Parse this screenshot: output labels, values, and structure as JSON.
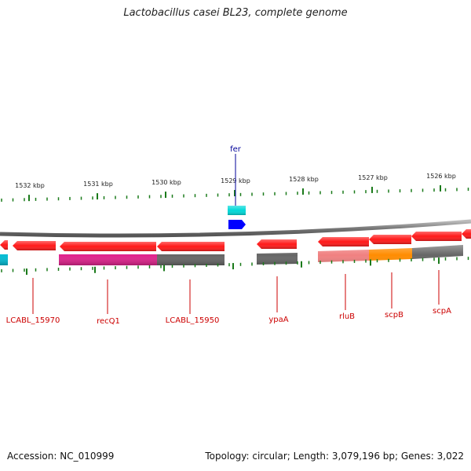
{
  "title": "Lactobacillus casei BL23, complete genome",
  "footer": {
    "accession": "Accession: NC_010999",
    "summary": "Topology: circular; Length: 3,079,196 bp; Genes: 3,022"
  },
  "colors": {
    "gene_red": "#ff1a1a",
    "backbone": "#888888",
    "tick_green": "#1a7a1a",
    "label_red": "#cc0000",
    "label_blue": "#000099",
    "cds_magenta": "#e0228c",
    "cds_gray": "#666666",
    "cds_pink": "#f08080",
    "cds_orange": "#ff8c00",
    "fer_cyan": "#00d8d8",
    "fer_blue": "#0000ff"
  },
  "scale_labels": [
    "1532 kbp",
    "1531 kbp",
    "1530 kbp",
    "1529 kbp",
    "1528 kbp",
    "1527 kbp",
    "1526 kbp"
  ],
  "gene_labels": [
    "LCABL_15970",
    "recQ1",
    "LCABL_15950",
    "ypaA",
    "rluB",
    "scpB",
    "scpA"
  ],
  "feature_labels": [
    "fer"
  ],
  "icons": {
    "gene_arrow": "left-arrow-shape"
  }
}
